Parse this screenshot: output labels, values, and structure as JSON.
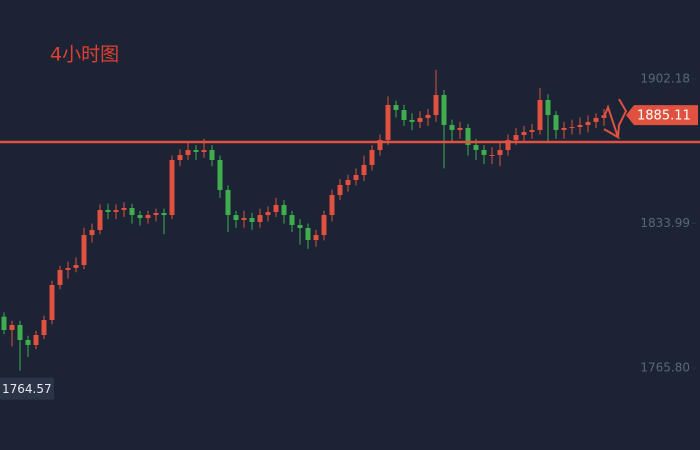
{
  "chart_data": {
    "type": "candlestick",
    "title": "4小时图",
    "up_color": "#e0513f",
    "down_color": "#3fae4f",
    "ylim": [
      1727.1,
      1939.46
    ],
    "yticks": [
      {
        "value": 1765.8,
        "label": "1765.80"
      },
      1833.99,
      1902.18
    ],
    "hline": 1872.45,
    "hline_color": "#e0513f",
    "open": [
      1790.0,
      1783.73,
      1786.09,
      1779.01,
      1776.65,
      1781.37,
      1788.45,
      1804.97,
      1812.05,
      1812.99,
      1814.41,
      1828.56,
      1830.92,
      1840.36,
      1839.42,
      1840.36,
      1841.3,
      1837.98,
      1836.57,
      1837.98,
      1838.94,
      1837.98,
      1863.96,
      1866.32,
      1868.67,
      1867.73,
      1868.67,
      1863.96,
      1849.8,
      1837.98,
      1835.64,
      1836.57,
      1834.7,
      1837.98,
      1839.42,
      1842.72,
      1837.98,
      1833.28,
      1831.87,
      1826.2,
      1828.56,
      1837.98,
      1847.44,
      1852.16,
      1854.52,
      1856.88,
      1861.6,
      1868.67,
      1873.39,
      1889.91,
      1887.55,
      1882.83,
      1881.89,
      1883.78,
      1885.19,
      1894.63,
      1880.47,
      1878.11,
      1879.06,
      1871.03,
      1868.67,
      1866.32,
      1866.32,
      1868.67,
      1873.39,
      1875.75,
      1877.17,
      1878.11,
      1892.27,
      1885.19,
      1878.11,
      1879.06,
      1879.53,
      1880.47,
      1881.89,
      1883.78
    ],
    "high": [
      1792.0,
      1788.09,
      1788.09,
      1781.01,
      1783.37,
      1790.45,
      1806.97,
      1814.05,
      1816.0,
      1818.0,
      1832.0,
      1834.0,
      1843.0,
      1843.36,
      1843.0,
      1844.0,
      1843.3,
      1840.0,
      1840.0,
      1841.0,
      1841.0,
      1866.0,
      1869.0,
      1872.0,
      1871.0,
      1874.0,
      1871.0,
      1866.0,
      1852.0,
      1840.0,
      1840.0,
      1839.0,
      1841.0,
      1842.0,
      1846.0,
      1845.0,
      1840.0,
      1836.0,
      1834.0,
      1831.0,
      1840.0,
      1850.0,
      1855.0,
      1857.0,
      1860.0,
      1866.0,
      1871.0,
      1876.0,
      1894.0,
      1892.0,
      1890.0,
      1886.0,
      1887.0,
      1888.0,
      1906.4,
      1897.0,
      1883.0,
      1882.0,
      1881.0,
      1874.0,
      1871.0,
      1870.0,
      1872.0,
      1876.0,
      1879.0,
      1880.0,
      1881.0,
      1898.0,
      1895.0,
      1887.0,
      1882.0,
      1883.0,
      1884.0,
      1885.0,
      1886.0,
      1888.0
    ],
    "low": [
      1781.73,
      1776.0,
      1764.57,
      1771.0,
      1774.65,
      1779.37,
      1786.45,
      1802.97,
      1808.0,
      1810.99,
      1812.41,
      1825.0,
      1828.92,
      1836.0,
      1836.0,
      1837.0,
      1834.0,
      1833.0,
      1834.0,
      1835.0,
      1829.0,
      1835.98,
      1861.0,
      1864.0,
      1864.0,
      1865.0,
      1861.0,
      1846.0,
      1830.0,
      1832.0,
      1832.0,
      1831.0,
      1832.0,
      1835.0,
      1837.0,
      1834.0,
      1830.0,
      1824.0,
      1822.0,
      1823.0,
      1826.0,
      1835.0,
      1845.0,
      1849.0,
      1852.0,
      1854.0,
      1859.0,
      1866.0,
      1871.0,
      1884.0,
      1880.0,
      1878.0,
      1879.0,
      1880.0,
      1882.0,
      1860.0,
      1872.0,
      1874.0,
      1866.0,
      1864.0,
      1862.0,
      1862.0,
      1861.0,
      1866.0,
      1871.0,
      1873.0,
      1874.0,
      1876.0,
      1872.0,
      1874.0,
      1874.0,
      1876.0,
      1876.0,
      1877.0,
      1879.0,
      1880.0
    ],
    "close": [
      1783.73,
      1786.09,
      1779.01,
      1776.65,
      1781.37,
      1788.45,
      1804.97,
      1812.05,
      1812.99,
      1814.41,
      1828.56,
      1830.92,
      1840.36,
      1839.42,
      1840.36,
      1841.3,
      1837.98,
      1836.57,
      1837.98,
      1838.94,
      1837.98,
      1863.96,
      1866.32,
      1868.67,
      1867.73,
      1868.67,
      1863.96,
      1849.8,
      1837.98,
      1835.64,
      1836.57,
      1834.7,
      1837.98,
      1839.42,
      1842.72,
      1837.98,
      1833.28,
      1831.87,
      1826.2,
      1828.56,
      1837.98,
      1847.44,
      1852.16,
      1854.52,
      1856.88,
      1861.6,
      1868.67,
      1873.39,
      1889.91,
      1887.55,
      1882.83,
      1881.89,
      1883.78,
      1885.19,
      1894.63,
      1880.47,
      1878.11,
      1879.06,
      1871.03,
      1868.67,
      1866.32,
      1866.32,
      1868.67,
      1873.39,
      1875.75,
      1877.17,
      1878.11,
      1892.27,
      1885.19,
      1878.11,
      1879.06,
      1879.53,
      1880.47,
      1881.89,
      1883.78,
      1885.11
    ]
  }
}
